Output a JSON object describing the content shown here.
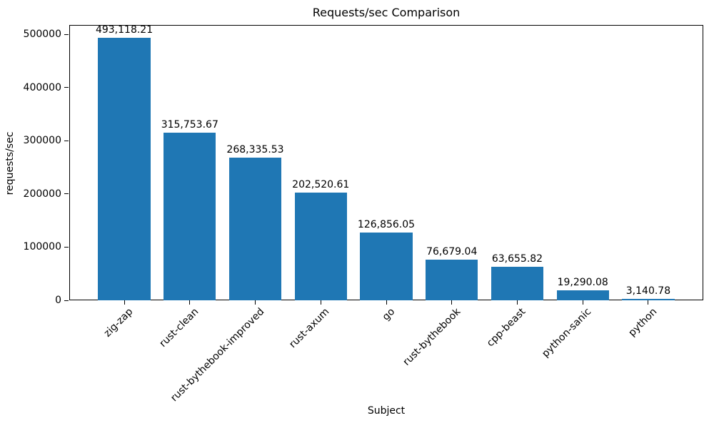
{
  "chart_data": {
    "type": "bar",
    "title": "Requests/sec Comparison",
    "xlabel": "Subject",
    "ylabel": "requests/sec",
    "categories": [
      "zig-zap",
      "rust-clean",
      "rust-bythebook-improved",
      "rust-axum",
      "go",
      "rust-bythebook",
      "cpp-beast",
      "python-sanic",
      "python"
    ],
    "values": [
      493118.21,
      315753.67,
      268335.53,
      202520.61,
      126856.05,
      76679.04,
      63655.82,
      19290.08,
      3140.78
    ],
    "value_labels": [
      "493,118.21",
      "315,753.67",
      "268,335.53",
      "202,520.61",
      "126,856.05",
      "76,679.04",
      "63,655.82",
      "19,290.08",
      "3,140.78"
    ],
    "yticks": [
      0,
      100000,
      200000,
      300000,
      400000,
      500000
    ],
    "ytick_labels": [
      "0",
      "100000",
      "200000",
      "300000",
      "400000",
      "500000"
    ],
    "ylim": [
      0,
      517774
    ],
    "xlim": [
      -0.84,
      8.84
    ],
    "bar_width": 0.8,
    "bar_color": "#1f77b4",
    "grid": false,
    "legend": null,
    "x_tick_rotation_deg": 45
  }
}
